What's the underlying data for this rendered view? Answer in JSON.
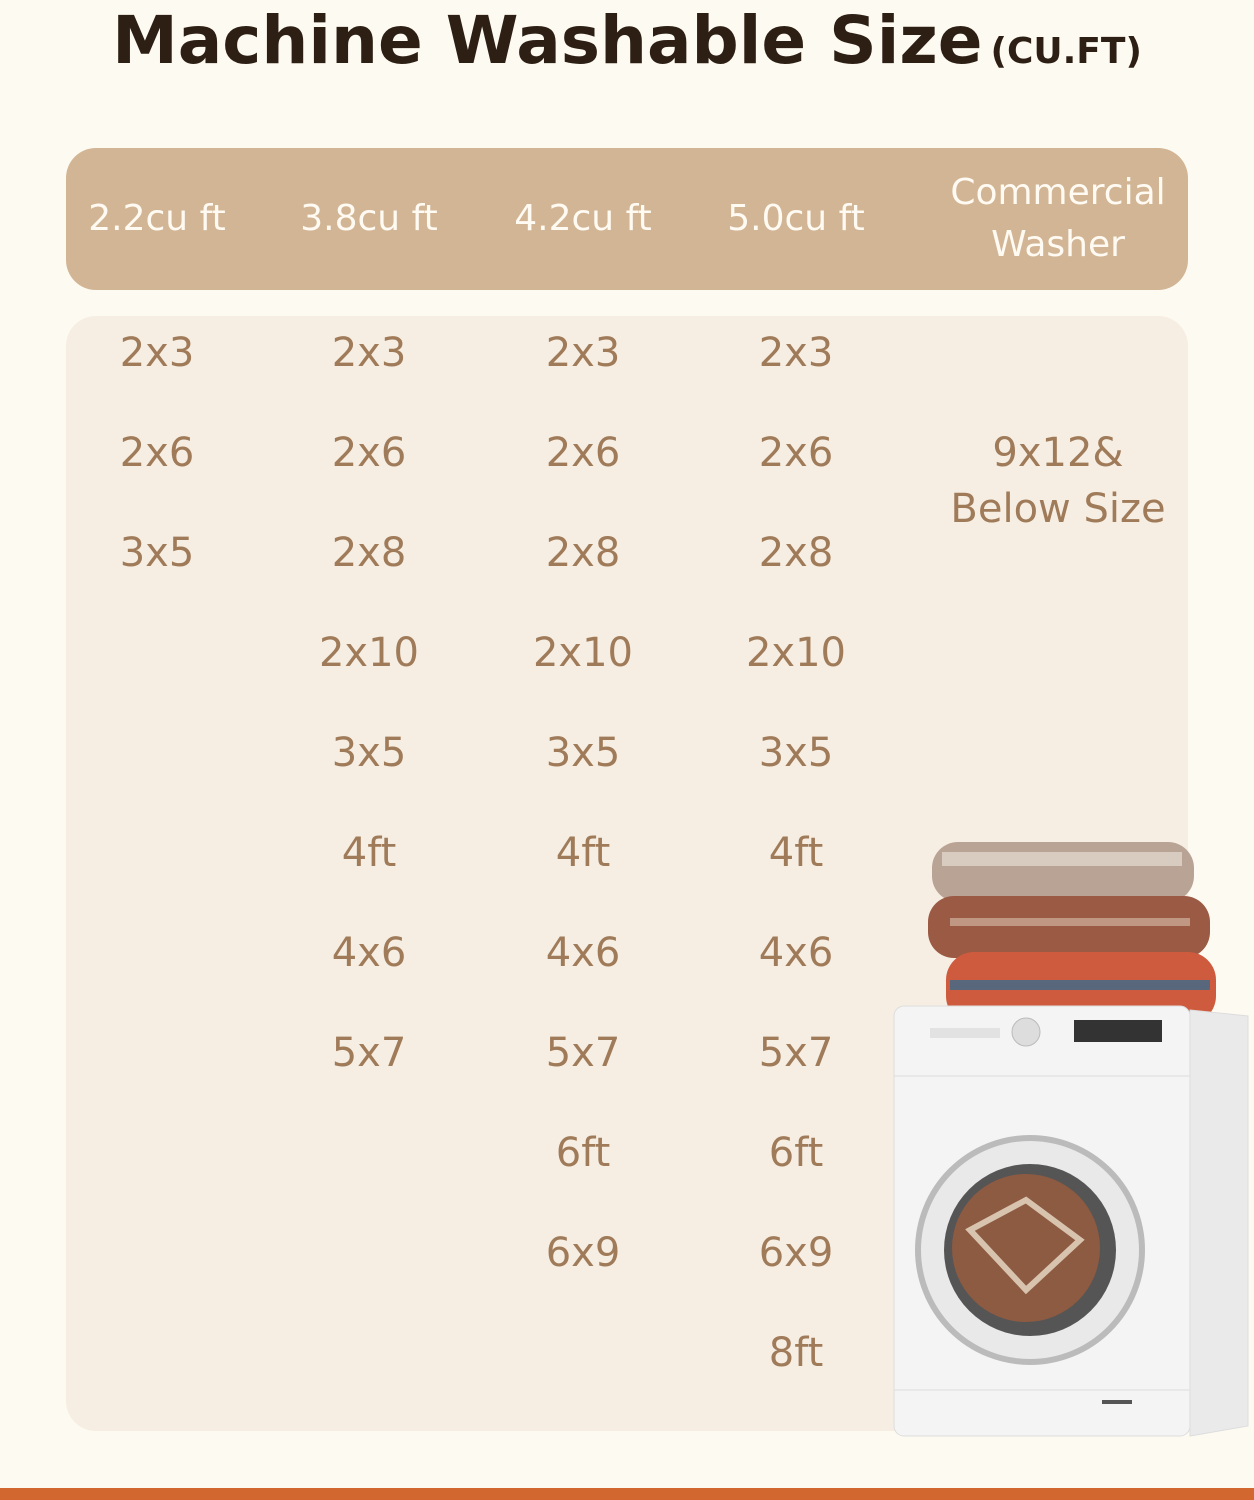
{
  "title": {
    "main": "Machine Washable Size",
    "unit": "(CU.FT)"
  },
  "columns": [
    {
      "header": "2.2cu ft",
      "sizes": [
        "2x3",
        "2x6",
        "3x5"
      ]
    },
    {
      "header": "3.8cu ft",
      "sizes": [
        "2x3",
        "2x6",
        "2x8",
        "2x10",
        "3x5",
        "4ft",
        "4x6",
        "5x7"
      ]
    },
    {
      "header": "4.2cu ft",
      "sizes": [
        "2x3",
        "2x6",
        "2x8",
        "2x10",
        "3x5",
        "4ft",
        "4x6",
        "5x7",
        "6ft",
        "6x9"
      ]
    },
    {
      "header": "5.0cu ft",
      "sizes": [
        "2x3",
        "2x6",
        "2x8",
        "2x10",
        "3x5",
        "4ft",
        "4x6",
        "5x7",
        "6ft",
        "6x9",
        "8ft"
      ]
    },
    {
      "header": "Commercial Washer",
      "sizes": [
        "9x12& Below Size"
      ]
    }
  ],
  "colors": {
    "background": "#fdfaf2",
    "header": "#d2b594",
    "panel": "#f6eee2",
    "text": "#a07b5a",
    "title": "#2d1f14",
    "accent_bar": "#d2672f"
  },
  "image": {
    "icon": "washing-machine-with-rugs-illustration"
  }
}
